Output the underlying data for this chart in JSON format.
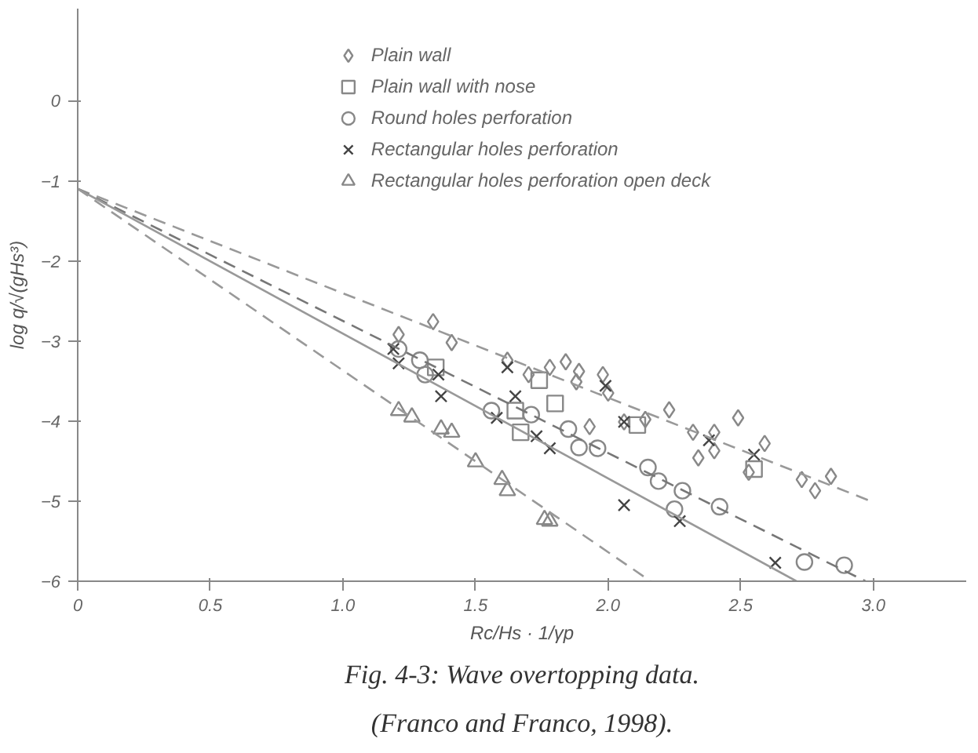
{
  "chart_data": {
    "type": "scatter",
    "xlabel": "Rc/Hs · 1/γp",
    "ylabel": "log q/√(gHs³)",
    "xlim": [
      0,
      3.35
    ],
    "ylim": [
      -6,
      1.15
    ],
    "xticks": [
      0,
      {
        "value": 0.5,
        "label": "0.5"
      },
      {
        "value": 1,
        "label": "1.0"
      },
      {
        "value": 1.5,
        "label": "1.5"
      },
      {
        "value": 2,
        "label": "2.0"
      },
      {
        "value": 2.5,
        "label": "2.5"
      },
      {
        "value": 3,
        "label": "3.0"
      }
    ],
    "yticks": [
      0,
      -1,
      -2,
      -3,
      -4,
      -5,
      -6
    ],
    "grid": false,
    "legend": "top",
    "annotations": [
      "Fig. 4-3: Wave overtopping data.",
      "(Franco and Franco, 1998)."
    ],
    "series": [
      {
        "name": "Plain wall",
        "marker": "diamond",
        "color": "#888888",
        "x": [
          1.34,
          1.21,
          1.41,
          1.62,
          1.84,
          1.98,
          2.0,
          2.23,
          2.49,
          2.59,
          2.06,
          2.14,
          1.93,
          2.32,
          2.4,
          2.34,
          2.4,
          2.84,
          2.73,
          2.78,
          2.53,
          1.88,
          1.78,
          1.7,
          1.89
        ],
        "values": [
          -2.76,
          -2.92,
          -3.02,
          -3.24,
          -3.26,
          -3.42,
          -3.65,
          -3.86,
          -3.96,
          -4.28,
          -4.01,
          -3.98,
          -4.07,
          -4.14,
          -4.14,
          -4.46,
          -4.37,
          -4.69,
          -4.73,
          -4.87,
          -4.64,
          -3.51,
          -3.33,
          -3.42,
          -3.38
        ]
      },
      {
        "name": "Plain wall with nose",
        "marker": "square",
        "color": "#888888",
        "x": [
          1.8,
          1.74,
          2.11,
          2.55,
          1.65,
          1.35,
          1.67
        ],
        "values": [
          -3.78,
          -3.49,
          -4.05,
          -4.6,
          -3.87,
          -3.33,
          -4.14
        ]
      },
      {
        "name": "Round holes perforation",
        "marker": "circle",
        "color": "#888888",
        "x": [
          1.21,
          1.29,
          1.31,
          1.85,
          1.89,
          1.96,
          2.15,
          2.19,
          2.28,
          2.42,
          2.25,
          2.74,
          2.89,
          1.56,
          1.71
        ],
        "values": [
          -3.1,
          -3.24,
          -3.42,
          -4.1,
          -4.33,
          -4.34,
          -4.58,
          -4.75,
          -4.87,
          -5.07,
          -5.1,
          -5.76,
          -5.8,
          -3.87,
          -3.92
        ]
      },
      {
        "name": "Rectangular holes perforation",
        "marker": "cross",
        "color": "#444444",
        "x": [
          1.19,
          1.21,
          1.37,
          1.36,
          1.58,
          1.73,
          1.78,
          2.06,
          2.27,
          2.63,
          1.62,
          1.65,
          1.99,
          2.55,
          2.38,
          2.06
        ],
        "values": [
          -3.1,
          -3.28,
          -3.69,
          -3.42,
          -3.96,
          -4.19,
          -4.34,
          -5.05,
          -5.25,
          -5.77,
          -3.33,
          -3.69,
          -3.56,
          -4.42,
          -4.24,
          -4.01
        ]
      },
      {
        "name": "Rectangular holes perforation open deck",
        "marker": "triangle",
        "color": "#888888",
        "x": [
          1.21,
          1.26,
          1.37,
          1.41,
          1.5,
          1.6,
          1.62,
          1.76,
          1.78
        ],
        "values": [
          -3.87,
          -3.95,
          -4.1,
          -4.14,
          -4.51,
          -4.73,
          -4.87,
          -5.23,
          -5.25
        ]
      },
      {
        "type": "line",
        "line_style": "dashed",
        "color": "#999999",
        "x": [
          0,
          2.99
        ],
        "values": [
          -1.1,
          -5.0
        ]
      },
      {
        "type": "line",
        "line_style": "dashed",
        "color": "#777777",
        "x": [
          0,
          2.97
        ],
        "values": [
          -1.1,
          -6.0
        ]
      },
      {
        "type": "line",
        "line_style": "solid",
        "color": "#999999",
        "x": [
          0,
          2.71
        ],
        "values": [
          -1.1,
          -6.0
        ]
      },
      {
        "type": "line",
        "line_style": "dashed",
        "color": "#999999",
        "x": [
          0,
          2.16
        ],
        "values": [
          -1.1,
          -6.0
        ]
      }
    ]
  }
}
